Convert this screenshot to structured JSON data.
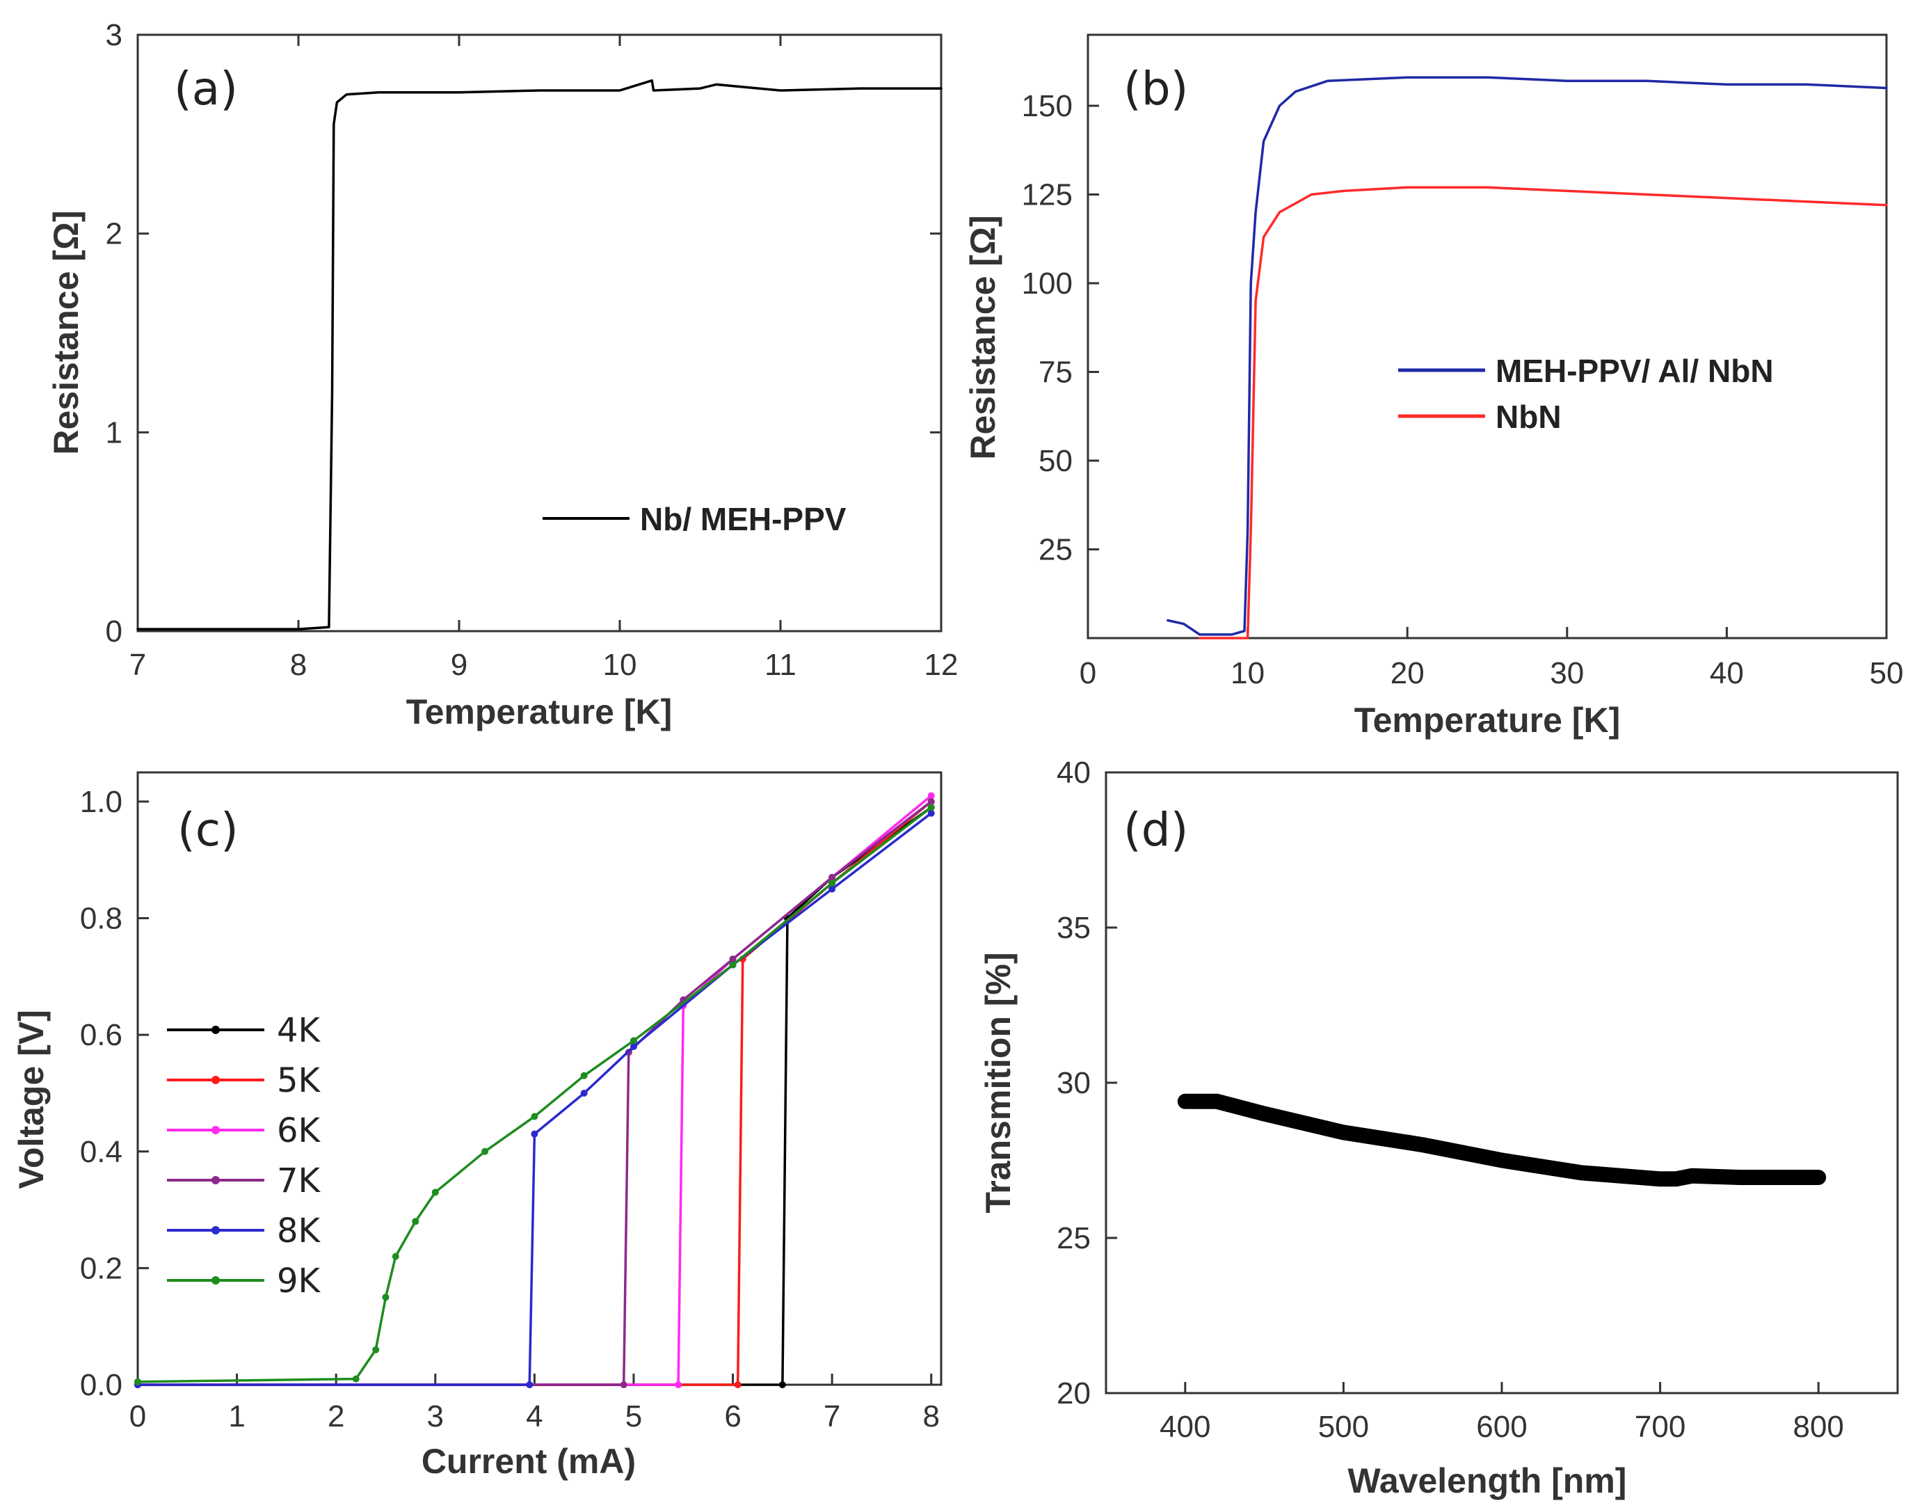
{
  "chart_data": [
    {
      "id": "a",
      "type": "line",
      "panel_label": "(a)",
      "xlabel": "Temperature [K]",
      "ylabel": "Resistance [Ω]",
      "xlim": [
        7,
        12
      ],
      "ylim": [
        0,
        3
      ],
      "xticks": [
        7,
        8,
        9,
        10,
        11,
        12
      ],
      "yticks": [
        0,
        1,
        2,
        3
      ],
      "legend_position": "bottom-right",
      "series": [
        {
          "name": "Nb/ MEH-PPV",
          "color": "#000000",
          "x": [
            7.0,
            7.5,
            8.0,
            8.19,
            8.21,
            8.22,
            8.24,
            8.3,
            8.5,
            9.0,
            9.5,
            10.0,
            10.2,
            10.21,
            10.5,
            10.6,
            11.0,
            11.5,
            12.0
          ],
          "y": [
            0.01,
            0.01,
            0.01,
            0.02,
            1.2,
            2.55,
            2.66,
            2.7,
            2.71,
            2.71,
            2.72,
            2.72,
            2.77,
            2.72,
            2.73,
            2.75,
            2.72,
            2.73,
            2.73
          ]
        }
      ]
    },
    {
      "id": "b",
      "type": "line",
      "panel_label": "(b)",
      "xlabel": "Temperature [K]",
      "ylabel": "Resistance [Ω]",
      "xlim": [
        0,
        50
      ],
      "ylim": [
        0,
        170
      ],
      "xticks": [
        0,
        10,
        20,
        30,
        40,
        50
      ],
      "yticks": [
        25,
        50,
        75,
        100,
        125,
        150
      ],
      "legend_position": "middle-right",
      "series": [
        {
          "name": "MEH-PPV/ Al/ NbN",
          "color": "#1f2aa6",
          "x": [
            5.0,
            6.0,
            7.0,
            8.0,
            9.0,
            9.8,
            10.0,
            10.2,
            10.5,
            11.0,
            12.0,
            13.0,
            15.0,
            20.0,
            25.0,
            30.0,
            35.0,
            40.0,
            45.0,
            50.0
          ],
          "y": [
            5,
            4,
            1,
            1,
            1,
            2,
            30,
            100,
            120,
            140,
            150,
            154,
            157,
            158,
            158,
            157,
            157,
            156,
            156,
            155
          ]
        },
        {
          "name": "NbN",
          "color": "#ff2a2a",
          "x": [
            7.0,
            8.0,
            9.0,
            10.0,
            10.2,
            10.5,
            11.0,
            12.0,
            14.0,
            16.0,
            20.0,
            25.0,
            30.0,
            35.0,
            40.0,
            45.0,
            50.0
          ],
          "y": [
            0,
            0,
            0,
            0,
            30,
            95,
            113,
            120,
            125,
            126,
            127,
            127,
            126,
            125,
            124,
            123,
            122
          ]
        }
      ]
    },
    {
      "id": "c",
      "type": "line",
      "panel_label": "(c)",
      "xlabel": "Current (mA)",
      "ylabel": "Voltage [V]",
      "xlim": [
        0,
        8.1
      ],
      "ylim": [
        0,
        1.05
      ],
      "xticks": [
        0,
        1,
        2,
        3,
        4,
        5,
        6,
        7,
        8
      ],
      "yticks": [
        0.0,
        0.2,
        0.4,
        0.6,
        0.8,
        1.0
      ],
      "legend_position": "middle-left",
      "series": [
        {
          "name": "4K",
          "color": "#000000",
          "x": [
            0,
            6.5,
            6.55,
            7.0,
            8.0
          ],
          "y": [
            0,
            0,
            0.8,
            0.87,
            0.99
          ]
        },
        {
          "name": "5K",
          "color": "#ff1a1a",
          "x": [
            0,
            6.05,
            6.1,
            7.0,
            8.0
          ],
          "y": [
            0,
            0,
            0.73,
            0.86,
            1.0
          ]
        },
        {
          "name": "6K",
          "color": "#ff2af0",
          "x": [
            0,
            5.45,
            5.5,
            6.0,
            7.0,
            8.0
          ],
          "y": [
            0,
            0,
            0.65,
            0.73,
            0.87,
            1.01
          ]
        },
        {
          "name": "7K",
          "color": "#8c2a8c",
          "x": [
            0,
            4.9,
            4.95,
            5.5,
            6.0,
            7.0,
            8.0
          ],
          "y": [
            0,
            0,
            0.57,
            0.66,
            0.73,
            0.87,
            1.0
          ]
        },
        {
          "name": "8K",
          "color": "#2a2ad0",
          "x": [
            0,
            3.95,
            4.0,
            4.5,
            5.0,
            6.0,
            7.0,
            8.0
          ],
          "y": [
            0,
            0,
            0.43,
            0.5,
            0.58,
            0.72,
            0.85,
            0.98
          ]
        },
        {
          "name": "9K",
          "color": "#1e8c1e",
          "x": [
            0,
            2.2,
            2.4,
            2.5,
            2.6,
            2.8,
            3.0,
            3.5,
            4.0,
            4.5,
            5.0,
            6.0,
            7.0,
            8.0
          ],
          "y": [
            0.005,
            0.01,
            0.06,
            0.15,
            0.22,
            0.28,
            0.33,
            0.4,
            0.46,
            0.53,
            0.59,
            0.72,
            0.86,
            0.99
          ]
        }
      ]
    },
    {
      "id": "d",
      "type": "line",
      "panel_label": "(d)",
      "xlabel": "Wavelength [nm]",
      "ylabel": "Transmition [%]",
      "xlim": [
        350,
        850
      ],
      "ylim": [
        20,
        40
      ],
      "xticks": [
        400,
        500,
        600,
        700,
        800
      ],
      "yticks": [
        20,
        25,
        30,
        35,
        40
      ],
      "series": [
        {
          "name": "Transmition",
          "color": "#000000",
          "x": [
            400,
            420,
            450,
            500,
            550,
            600,
            650,
            700,
            710,
            720,
            750,
            800
          ],
          "y": [
            29.4,
            29.4,
            29.0,
            28.4,
            28.0,
            27.5,
            27.1,
            26.9,
            26.9,
            27.0,
            26.95,
            26.95
          ]
        }
      ]
    }
  ]
}
